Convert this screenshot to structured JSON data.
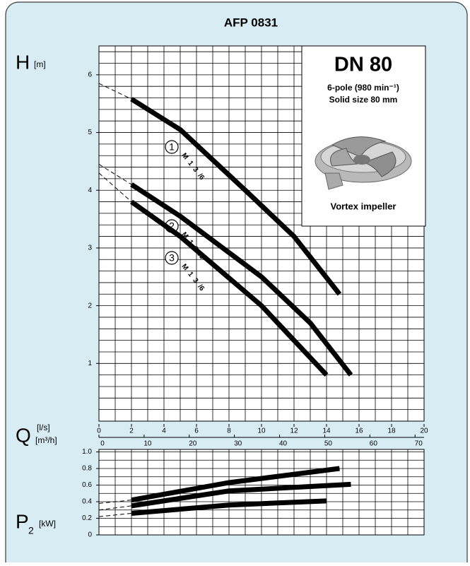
{
  "title": "AFP 0831",
  "inset": {
    "heading": "DN 80",
    "speed": "6-pole (980 min⁻¹)",
    "solid_size": "Solid size 80 mm",
    "impeller": "Vortex impeller"
  },
  "chart_data": [
    {
      "type": "line",
      "y_label": "H",
      "y_unit": "[m]",
      "x_label": "Q",
      "x_unit": "[l/s]",
      "x2_unit": "[m³/h]",
      "xlim": [
        0,
        20
      ],
      "xticks": [
        0,
        2,
        4,
        6,
        8,
        10,
        12,
        14,
        16,
        18,
        20
      ],
      "x2lim": [
        0,
        72
      ],
      "x2ticks": [
        0,
        10,
        20,
        30,
        40,
        50,
        60,
        70
      ],
      "ylim": [
        0,
        6.5
      ],
      "yticks": [
        1,
        2,
        3,
        4,
        5,
        6
      ],
      "grid": true,
      "grid_step": [
        1,
        0.2
      ],
      "dashed_segments": 1,
      "series": [
        {
          "name": "1",
          "model": "M 1 3 /6",
          "color": "#000000",
          "x": [
            0,
            2,
            5,
            9,
            12,
            14.8
          ],
          "values": [
            5.85,
            5.58,
            5.05,
            4.0,
            3.2,
            2.2
          ]
        },
        {
          "name": "2",
          "model": "M 1 3 /6",
          "color": "#000000",
          "x": [
            0,
            2,
            5,
            10,
            13,
            15.5
          ],
          "values": [
            4.45,
            4.1,
            3.55,
            2.5,
            1.7,
            0.8
          ]
        },
        {
          "name": "3",
          "model": "M 1 3 /6",
          "color": "#000000",
          "x": [
            0,
            2,
            5,
            10,
            14
          ],
          "values": [
            4.3,
            3.8,
            3.2,
            2.0,
            0.8
          ]
        }
      ]
    },
    {
      "type": "line",
      "y_label": "P",
      "y_sub": "2",
      "y_unit": "[kW]",
      "xlim": [
        0,
        20
      ],
      "ylim": [
        0,
        1.03
      ],
      "yticks": [
        0,
        {
          "value": 0.2,
          "label": "0.2"
        },
        {
          "value": 0.4,
          "label": "0.4"
        },
        {
          "value": 0.6,
          "label": "0.6"
        },
        {
          "value": 0.8,
          "label": "0.8"
        },
        {
          "value": 1,
          "label": "1.0"
        }
      ],
      "grid": true,
      "grid_step": [
        1,
        0.1
      ],
      "dashed_segments": 1,
      "series": [
        {
          "color": "#000000",
          "x": [
            0,
            2,
            8,
            14.8
          ],
          "values": [
            0.38,
            0.42,
            0.63,
            0.8
          ]
        },
        {
          "color": "#000000",
          "x": [
            0,
            2,
            8,
            15.5
          ],
          "values": [
            0.3,
            0.35,
            0.53,
            0.61
          ]
        },
        {
          "color": "#000000",
          "x": [
            0,
            2,
            8,
            14
          ],
          "values": [
            0.22,
            0.26,
            0.36,
            0.41
          ]
        }
      ]
    }
  ]
}
